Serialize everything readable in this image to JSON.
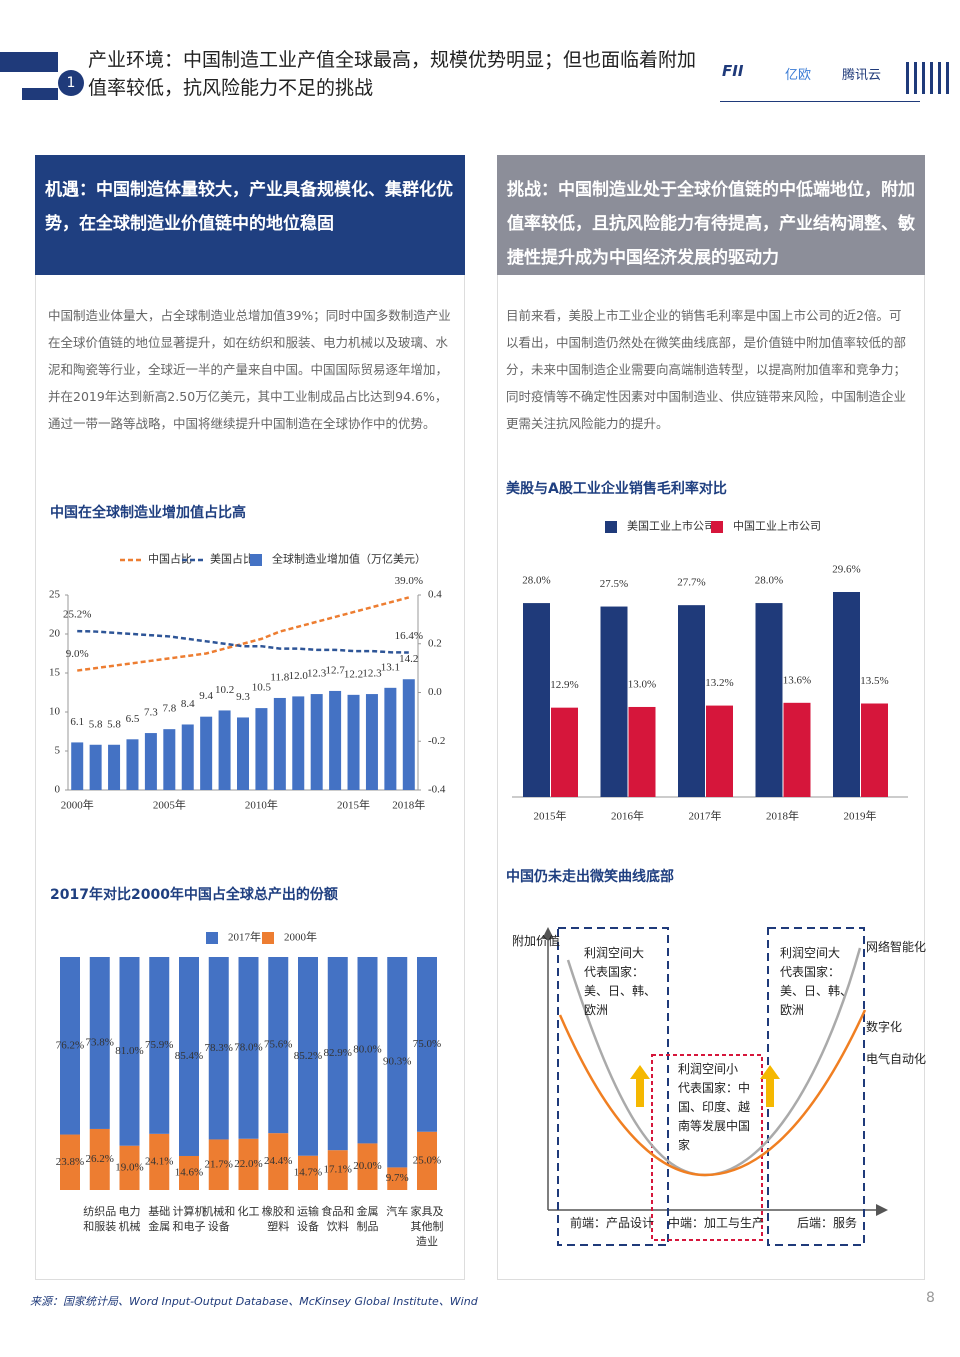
{
  "header": {
    "number": "1",
    "title": "产业环境：中国制造工业产值全球最高，规模优势明显；但也面临着附加值率较低，抗风险能力不足的挑战",
    "logos": [
      "FII",
      "亿欧",
      "腾讯云"
    ]
  },
  "left": {
    "heading": "机遇：中国制造体量较大，产业具备规模化、集群化优势，在全球制造业价值链中的地位稳固",
    "text": "中国制造业体量大，占全球制造业总增加值39%；同时中国多数制造产业在全球价值链的地位显著提升，如在纺织和服装、电力机械以及玻璃、水泥和陶瓷等行业，全球近一半的产量来自中国。中国国际贸易逐年增加，并在2019年达到新高2.50万亿美元，其中工业制成品占比达到94.6%，通过一带一路等战略，中国将继续提升中国制造在全球协作中的优势。"
  },
  "right": {
    "heading": "挑战：中国制造业处于全球价值链的中低端地位，附加值率较低，且抗风险能力有待提高，产业结构调整、敏捷性提升成为中国经济发展的驱动力",
    "text": "目前来看，美股上市工业企业的销售毛利率是中国上市公司的近2倍。可以看出，中国制造仍然处在微笑曲线底部，是价值链中附加值率较低的部分，未来中国制造企业需要向高端制造转型，以提高附加值率和竞争力；同时疫情等不确定性因素对中国制造业、供应链带来风险，中国制造企业更需关注抗风险能力的提升。"
  },
  "chart_data": [
    {
      "type": "combo",
      "title": "中国在全球制造业增加值占比高",
      "categories": [
        "2000年",
        null,
        null,
        null,
        null,
        "2005年",
        null,
        null,
        null,
        null,
        "2010年",
        null,
        null,
        null,
        null,
        "2015年",
        null,
        null,
        "2018年"
      ],
      "series": [
        {
          "name": "中国占比",
          "type": "line",
          "axis": "y2",
          "line_style": "dashed",
          "color": "#ed7d31",
          "values": [
            0.09,
            0.1,
            0.11,
            0.12,
            0.13,
            0.14,
            0.15,
            0.16,
            0.18,
            0.2,
            0.22,
            0.25,
            0.27,
            0.29,
            0.31,
            0.33,
            0.35,
            0.37,
            0.39
          ],
          "value_labels": [
            "9.0%",
            null,
            null,
            null,
            null,
            null,
            null,
            null,
            null,
            null,
            null,
            null,
            null,
            null,
            null,
            null,
            null,
            null,
            "39.0%"
          ]
        },
        {
          "name": "美国占比",
          "type": "line",
          "axis": "y2",
          "line_style": "dashed",
          "color": "#2e5597",
          "values": [
            0.252,
            0.25,
            0.245,
            0.24,
            0.235,
            0.23,
            0.22,
            0.21,
            0.2,
            0.19,
            0.19,
            0.18,
            0.18,
            0.175,
            0.175,
            0.17,
            0.17,
            0.165,
            0.164
          ],
          "value_labels": [
            "25.2%",
            null,
            null,
            null,
            null,
            null,
            null,
            null,
            null,
            null,
            null,
            null,
            null,
            null,
            null,
            null,
            null,
            null,
            "16.4%"
          ]
        },
        {
          "name": "全球制造业增加值（万亿美元）",
          "type": "bar",
          "color": "#4472c4",
          "values": [
            6.1,
            5.8,
            5.8,
            6.5,
            7.3,
            7.8,
            8.4,
            9.4,
            10.2,
            9.3,
            10.5,
            11.8,
            12.0,
            12.3,
            12.7,
            12.2,
            12.3,
            13.1,
            14.2
          ],
          "value_labels": [
            "6.1",
            "5.8",
            "5.8",
            "6.5",
            "7.3",
            "7.8",
            "8.4",
            "9.4",
            "10.2",
            "9.3",
            "10.5",
            "11.8",
            "12.0",
            "12.3",
            "12.7",
            "12.2",
            "12.3",
            "13.1",
            "14.2"
          ]
        }
      ],
      "ylim": [
        0,
        25
      ],
      "yticks": [
        0,
        5,
        10,
        15,
        20,
        25
      ],
      "y2lim": [
        -0.4,
        0.4
      ],
      "y2ticks": [
        -0.4,
        -0.2,
        {
          "value": 0,
          "label": "0.0"
        },
        0.2,
        0.4
      ],
      "legend": "top"
    },
    {
      "type": "bar",
      "title": "美股与A股工业企业销售毛利率对比",
      "categories": [
        "2015年",
        "2016年",
        "2017年",
        "2018年",
        "2019年"
      ],
      "series": [
        {
          "name": "美国工业上市公司",
          "color": "#1f3a7a",
          "values": [
            28.0,
            27.5,
            27.7,
            28.0,
            29.6
          ],
          "value_labels": [
            "28.0%",
            "27.5%",
            "27.7%",
            "28.0%",
            "29.6%"
          ]
        },
        {
          "name": "中国工业上市公司",
          "color": "#d6163b",
          "values": [
            12.9,
            13.0,
            13.2,
            13.6,
            13.5
          ],
          "value_labels": [
            "12.9%",
            "13.0%",
            "13.2%",
            "13.6%",
            "13.5%"
          ]
        }
      ],
      "legend": "top"
    },
    {
      "type": "stacked",
      "title": "2017年对比2000年中国占全球总产出的份额",
      "categories": [
        null,
        "纺织品和服装",
        "电力机械",
        "基础金属",
        "计算机和电子",
        "机械和设备",
        "化工",
        "橡胶和塑料",
        "运输设备",
        "食品和饮料",
        "金属制品",
        "汽车",
        "家具及其他制造业"
      ],
      "series": [
        {
          "name": "2017年",
          "color": "#4472c4",
          "values": [
            76.2,
            73.8,
            81.0,
            75.9,
            85.4,
            78.3,
            78.0,
            75.6,
            85.2,
            82.9,
            80.0,
            90.3,
            75.0
          ],
          "value_labels": [
            "76.2%",
            "73.8%",
            "81.0%",
            "75.9%",
            "85.4%",
            "78.3%",
            "78.0%",
            "75.6%",
            "85.2%",
            "82.9%",
            "80.0%",
            "90.3%",
            "75.0%"
          ]
        },
        {
          "name": "2000年",
          "color": "#ed7d31",
          "values": [
            23.8,
            26.2,
            19.0,
            24.1,
            14.6,
            21.7,
            22.0,
            24.4,
            14.7,
            17.1,
            20.0,
            9.7,
            25.0
          ],
          "value_labels": [
            "23.8%",
            "26.2%",
            "19.0%",
            "24.1%",
            "14.6%",
            "21.7%",
            "22.0%",
            "24.4%",
            "14.7%",
            "17.1%",
            "20.0%",
            "9.7%",
            "25.0%"
          ]
        }
      ],
      "legend": "top"
    }
  ],
  "diagram": {
    "title": "中国仍未走出微笑曲线底部",
    "y_label": "附加价值",
    "boxes": [
      {
        "title": "利润空间大",
        "text": "代表国家：美、日、韩、欧洲"
      },
      {
        "title": "利润空间小",
        "text": "代表国家：中国、印度、越南等发展中国家"
      },
      {
        "title": "利润空间大",
        "text": "代表国家：美、日、韩、欧洲"
      }
    ],
    "curve_labels": [
      "网络智能化",
      "数字化",
      "电气自动化"
    ],
    "stages": [
      "前端：产品设计",
      "中端：加工与生产",
      "后端：服务"
    ]
  },
  "footer": {
    "source": "来源：国家统计局、Word Input-Output Database、McKinsey Global Institute、Wind",
    "page": "8"
  }
}
